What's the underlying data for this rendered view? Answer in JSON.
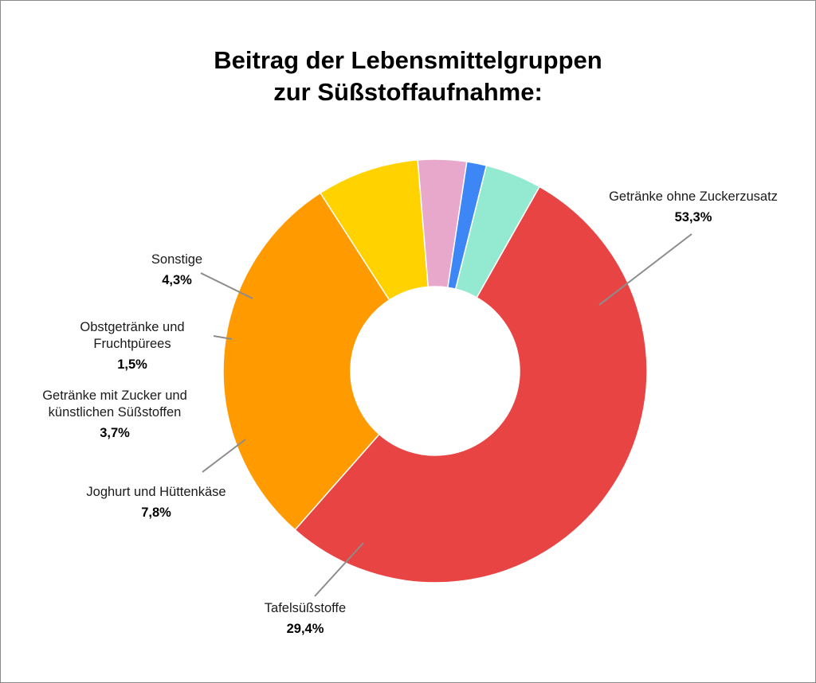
{
  "chart_data": {
    "type": "pie",
    "title_lines": [
      "Beitrag der Lebensmittelgruppen",
      "zur Süßstoffaufnahme:"
    ],
    "donut": true,
    "slices": [
      {
        "label": [
          "Getränke ohne Zuckerzusatz"
        ],
        "value": 53.3,
        "value_label": "53,3%",
        "color": "#e84444"
      },
      {
        "label": [
          "Tafelsüßstoffe"
        ],
        "value": 29.4,
        "value_label": "29,4%",
        "color": "#ff9a00"
      },
      {
        "label": [
          "Joghurt und Hüttenkäse"
        ],
        "value": 7.8,
        "value_label": "7,8%",
        "color": "#ffd200"
      },
      {
        "label": [
          "Getränke mit Zucker und",
          "künstlichen Süßstoffen"
        ],
        "value": 3.7,
        "value_label": "3,7%",
        "color": "#e8a8cb"
      },
      {
        "label": [
          "Obstgetränke und",
          "Fruchtpürees"
        ],
        "value": 1.5,
        "value_label": "1,5%",
        "color": "#3d86f5"
      },
      {
        "label": [
          "Sonstige"
        ],
        "value": 4.3,
        "value_label": "4,3%",
        "color": "#93ead1"
      }
    ]
  }
}
